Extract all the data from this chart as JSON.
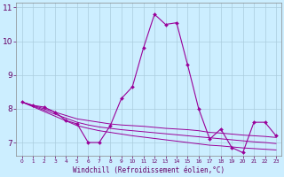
{
  "xlabel": "Windchill (Refroidissement éolien,°C)",
  "background_color": "#cceeff",
  "grid_color": "#aaccdd",
  "line_color": "#990099",
  "hours": [
    0,
    1,
    2,
    3,
    4,
    5,
    6,
    7,
    8,
    9,
    10,
    11,
    12,
    13,
    14,
    15,
    16,
    17,
    18,
    19,
    20,
    21,
    22,
    23
  ],
  "main_line": [
    8.2,
    8.1,
    8.05,
    7.9,
    7.65,
    7.55,
    7.0,
    7.0,
    7.5,
    8.3,
    8.65,
    9.8,
    10.8,
    10.5,
    10.55,
    9.3,
    8.0,
    7.1,
    7.4,
    6.85,
    6.7,
    7.6,
    7.6,
    7.2
  ],
  "trend1": [
    8.2,
    8.1,
    8.0,
    7.9,
    7.8,
    7.7,
    7.65,
    7.6,
    7.55,
    7.52,
    7.5,
    7.48,
    7.45,
    7.42,
    7.4,
    7.38,
    7.35,
    7.3,
    7.28,
    7.25,
    7.22,
    7.2,
    7.18,
    7.15
  ],
  "trend2": [
    8.2,
    8.08,
    7.96,
    7.84,
    7.72,
    7.6,
    7.52,
    7.46,
    7.42,
    7.38,
    7.35,
    7.32,
    7.29,
    7.26,
    7.23,
    7.2,
    7.17,
    7.14,
    7.11,
    7.08,
    7.05,
    7.02,
    7.0,
    6.97
  ],
  "trend3": [
    8.2,
    8.06,
    7.92,
    7.78,
    7.64,
    7.5,
    7.42,
    7.35,
    7.3,
    7.25,
    7.2,
    7.16,
    7.12,
    7.08,
    7.04,
    7.0,
    6.96,
    6.92,
    6.9,
    6.87,
    6.84,
    6.82,
    6.8,
    6.78
  ],
  "ylim": [
    6.6,
    11.15
  ],
  "yticks": [
    7,
    8,
    9,
    10,
    11
  ],
  "xlim": [
    -0.5,
    23.5
  ],
  "xlabel_fontsize": 5.5,
  "ytick_fontsize": 6.5,
  "xtick_fontsize": 4.2
}
